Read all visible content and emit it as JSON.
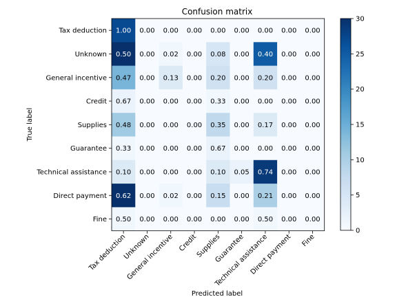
{
  "chart_data": {
    "type": "heatmap",
    "title": "Confusion matrix",
    "xlabel": "Predicted label",
    "ylabel": "True label",
    "row_labels": [
      "Tax deduction",
      "Unknown",
      "General incentive",
      "Credit",
      "Supplies",
      "Guarantee",
      "Technical assistance",
      "Direct payment",
      "Fine"
    ],
    "col_labels": [
      "Tax deduction",
      "Unknown",
      "General incentive",
      "Credit",
      "Supplies",
      "Guarantee",
      "Technical assistance",
      "Direct payment",
      "Fine"
    ],
    "values": [
      [
        "1.00",
        "0.00",
        "0.00",
        "0.00",
        "0.00",
        "0.00",
        "0.00",
        "0.00",
        "0.00"
      ],
      [
        "0.50",
        "0.00",
        "0.02",
        "0.00",
        "0.08",
        "0.00",
        "0.40",
        "0.00",
        "0.00"
      ],
      [
        "0.47",
        "0.00",
        "0.13",
        "0.00",
        "0.20",
        "0.00",
        "0.20",
        "0.00",
        "0.00"
      ],
      [
        "0.67",
        "0.00",
        "0.00",
        "0.00",
        "0.33",
        "0.00",
        "0.00",
        "0.00",
        "0.00"
      ],
      [
        "0.48",
        "0.00",
        "0.00",
        "0.00",
        "0.35",
        "0.00",
        "0.17",
        "0.00",
        "0.00"
      ],
      [
        "0.33",
        "0.00",
        "0.00",
        "0.00",
        "0.67",
        "0.00",
        "0.00",
        "0.00",
        "0.00"
      ],
      [
        "0.10",
        "0.00",
        "0.00",
        "0.00",
        "0.10",
        "0.05",
        "0.74",
        "0.00",
        "0.00"
      ],
      [
        "0.62",
        "0.00",
        "0.02",
        "0.00",
        "0.15",
        "0.00",
        "0.21",
        "0.00",
        "0.00"
      ],
      [
        "0.50",
        "0.00",
        "0.00",
        "0.00",
        "0.00",
        "0.00",
        "0.50",
        "0.00",
        "0.00"
      ]
    ],
    "counts": [
      [
        27,
        0,
        0,
        0,
        0,
        0,
        0,
        0,
        0
      ],
      [
        31,
        0,
        1,
        0,
        5,
        0,
        25,
        0,
        0
      ],
      [
        14,
        0,
        4,
        0,
        6,
        0,
        6,
        0,
        0
      ],
      [
        2,
        0,
        0,
        0,
        1,
        0,
        0,
        0,
        0
      ],
      [
        11,
        0,
        0,
        0,
        8,
        0,
        4,
        0,
        0
      ],
      [
        1,
        0,
        0,
        0,
        2,
        0,
        0,
        0,
        0
      ],
      [
        4,
        0,
        0,
        0,
        4,
        2,
        29,
        0,
        0
      ],
      [
        30,
        0,
        1,
        0,
        7,
        0,
        10,
        0,
        0
      ],
      [
        1,
        0,
        0,
        0,
        0,
        0,
        1,
        0,
        0
      ]
    ],
    "colorbar": {
      "colormap": "Blues",
      "range": [
        0,
        30
      ],
      "ticks": [
        "0",
        "5",
        "10",
        "15",
        "20",
        "25",
        "30"
      ]
    },
    "grid": false
  }
}
